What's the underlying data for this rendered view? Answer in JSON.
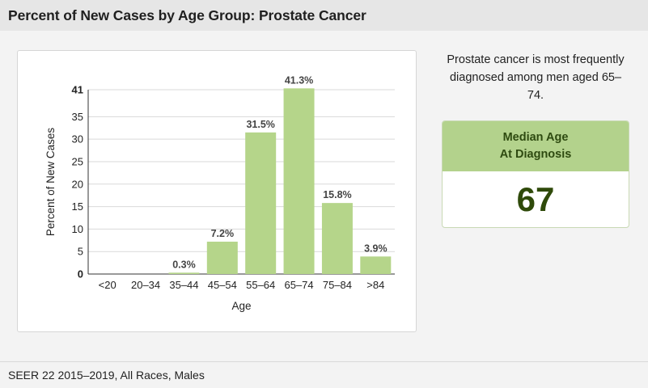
{
  "header": {
    "title": "Percent of New Cases by Age Group: Prostate Cancer"
  },
  "description": "Prostate cancer is most frequently diagnosed among men aged 65–74.",
  "median_card": {
    "title_line1": "Median Age",
    "title_line2": "At Diagnosis",
    "value": "67"
  },
  "footer": {
    "source": "SEER 22 2015–2019, All Races, Males"
  },
  "colors": {
    "bar": "#b5d58a",
    "accent": "#2f4a0a"
  },
  "chart_data": {
    "type": "bar",
    "title": "",
    "xlabel": "Age",
    "ylabel": "Percent of New Cases",
    "categories": [
      "<20",
      "20–34",
      "35–44",
      "45–54",
      "55–64",
      "65–74",
      "75–84",
      ">84"
    ],
    "values": [
      0,
      0,
      0.3,
      7.2,
      31.5,
      41.3,
      15.8,
      3.9
    ],
    "data_labels": [
      "",
      "",
      "0.3%",
      "7.2%",
      "31.5%",
      "41.3%",
      "15.8%",
      "3.9%"
    ],
    "ylim": [
      0,
      41
    ],
    "yticks": [
      0,
      5,
      10,
      15,
      20,
      25,
      30,
      35,
      41
    ],
    "grid": true,
    "legend": "none"
  }
}
